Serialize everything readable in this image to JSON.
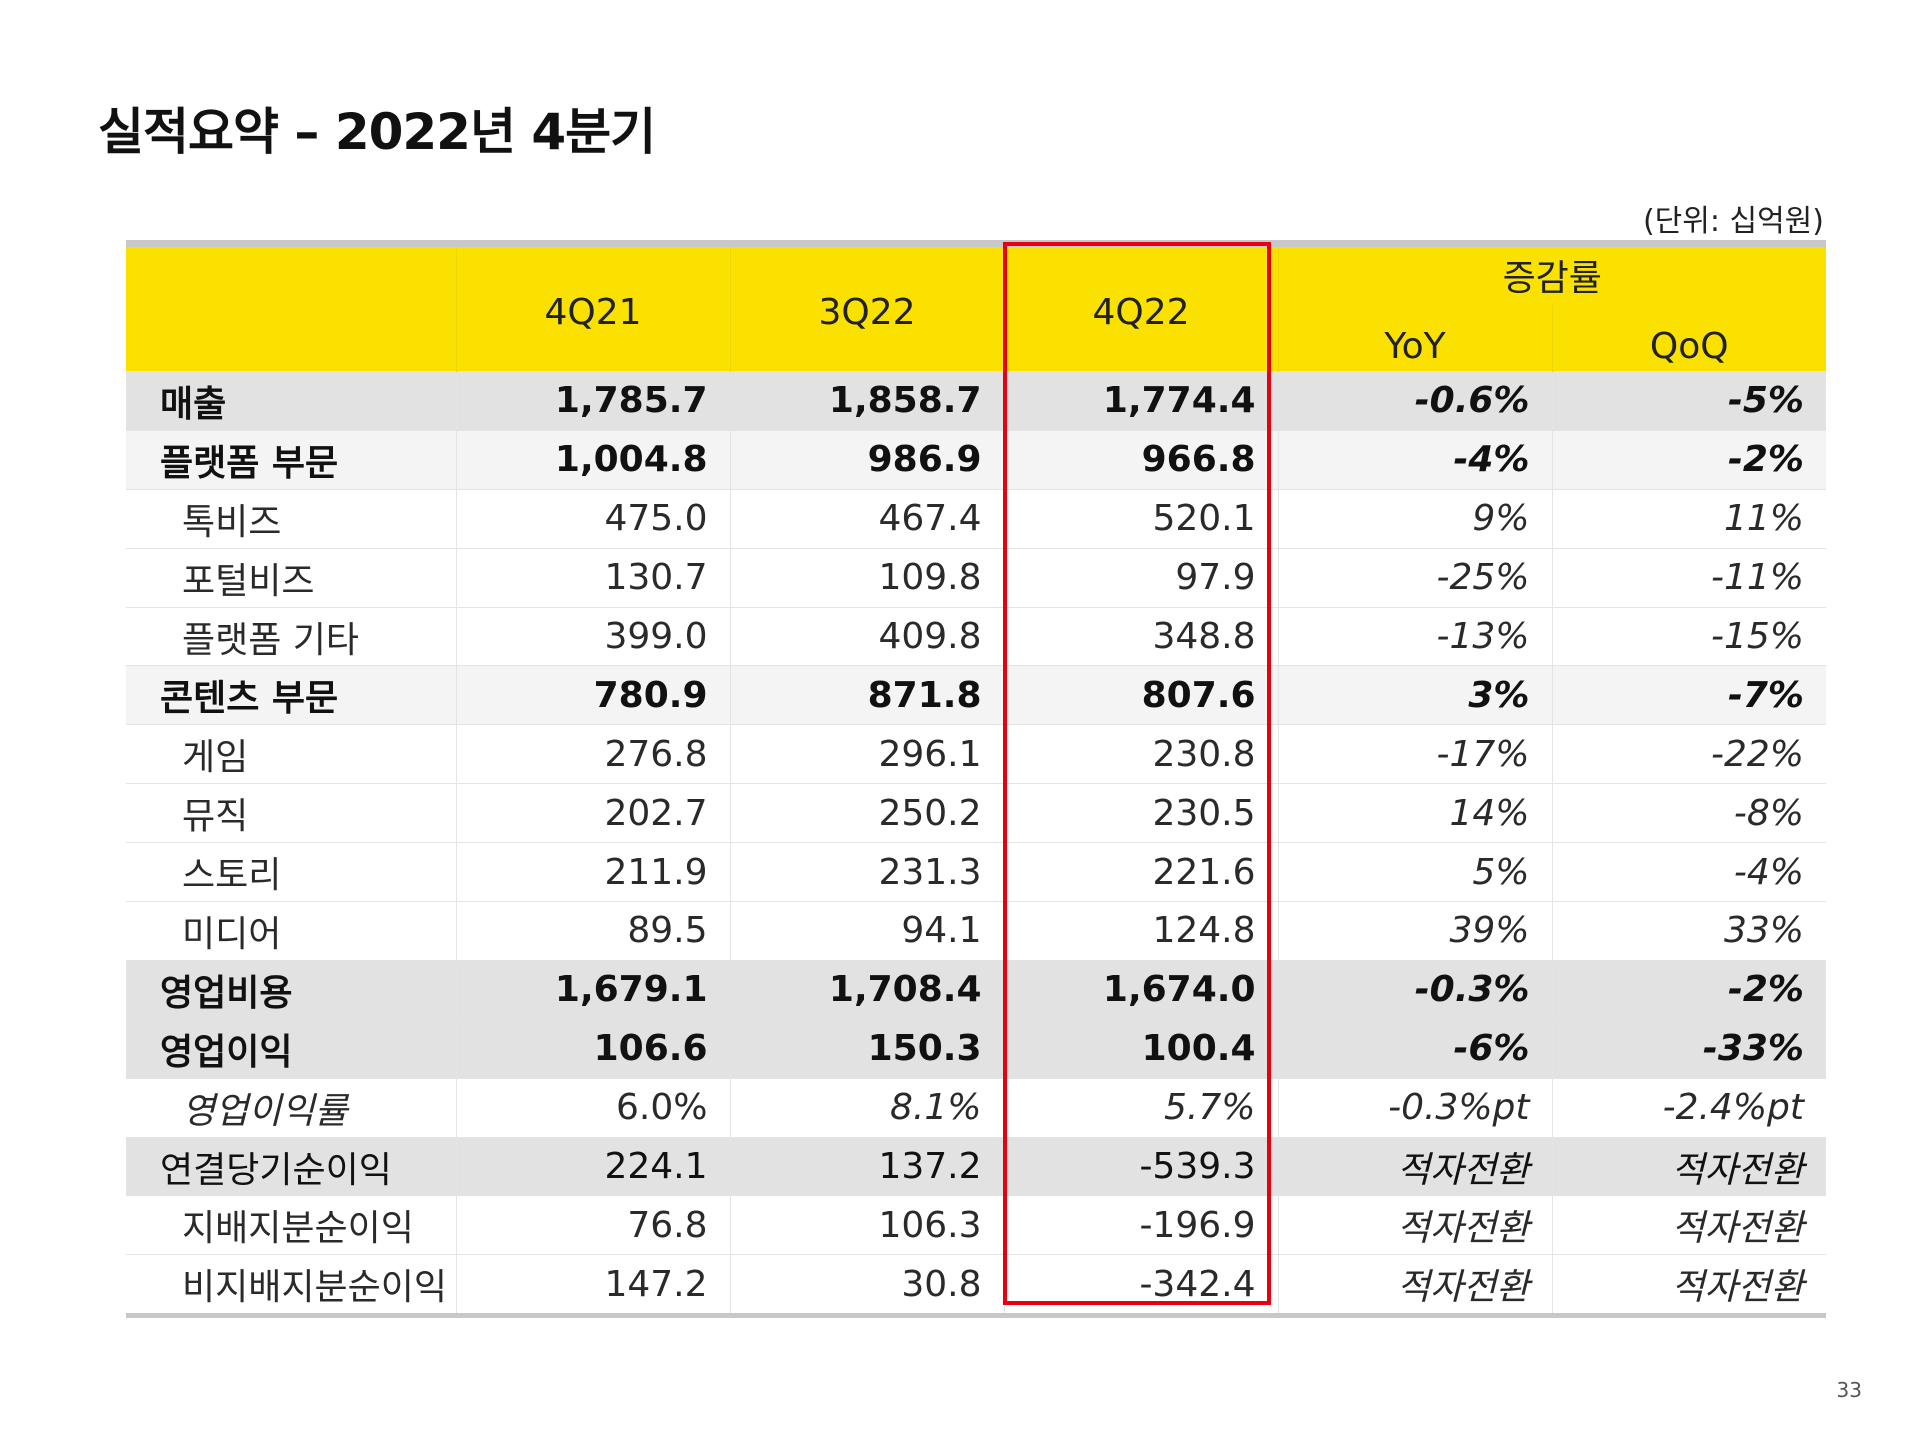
{
  "title": "실적요약 – 2022년 4분기",
  "unit_note": "(단위: 십억원)",
  "page_number": "33",
  "highlight_color": "#e60012",
  "header_color": "#fae100",
  "header": {
    "periods": [
      "4Q21",
      "3Q22",
      "4Q22"
    ],
    "change_group": "증감률",
    "change_cols": [
      "YoY",
      "QoQ"
    ]
  },
  "rows": [
    {
      "label": "매출",
      "values": [
        "1,785.7",
        "1,858.7",
        "1,774.4"
      ],
      "yoy": "-0.6%",
      "qoq": "-5%"
    },
    {
      "label": "플랫폼 부문",
      "values": [
        "1,004.8",
        "986.9",
        "966.8"
      ],
      "yoy": "-4%",
      "qoq": "-2%"
    },
    {
      "label": "톡비즈",
      "values": [
        "475.0",
        "467.4",
        "520.1"
      ],
      "yoy": "9%",
      "qoq": "11%"
    },
    {
      "label": "포털비즈",
      "values": [
        "130.7",
        "109.8",
        "97.9"
      ],
      "yoy": "-25%",
      "qoq": "-11%"
    },
    {
      "label": "플랫폼 기타",
      "values": [
        "399.0",
        "409.8",
        "348.8"
      ],
      "yoy": "-13%",
      "qoq": "-15%"
    },
    {
      "label": "콘텐츠 부문",
      "values": [
        "780.9",
        "871.8",
        "807.6"
      ],
      "yoy": "3%",
      "qoq": "-7%"
    },
    {
      "label": "게임",
      "values": [
        "276.8",
        "296.1",
        "230.8"
      ],
      "yoy": "-17%",
      "qoq": "-22%"
    },
    {
      "label": "뮤직",
      "values": [
        "202.7",
        "250.2",
        "230.5"
      ],
      "yoy": "14%",
      "qoq": "-8%"
    },
    {
      "label": "스토리",
      "values": [
        "211.9",
        "231.3",
        "221.6"
      ],
      "yoy": "5%",
      "qoq": "-4%"
    },
    {
      "label": "미디어",
      "values": [
        "89.5",
        "94.1",
        "124.8"
      ],
      "yoy": "39%",
      "qoq": "33%"
    },
    {
      "label": "영업비용",
      "values": [
        "1,679.1",
        "1,708.4",
        "1,674.0"
      ],
      "yoy": "-0.3%",
      "qoq": "-2%"
    },
    {
      "label": "영업이익",
      "values": [
        "106.6",
        "150.3",
        "100.4"
      ],
      "yoy": "-6%",
      "qoq": "-33%"
    },
    {
      "label": "영업이익률",
      "values": [
        "6.0%",
        "8.1%",
        "5.7%"
      ],
      "yoy": "-0.3%pt",
      "qoq": "-2.4%pt"
    },
    {
      "label": "연결당기순이익",
      "values": [
        "224.1",
        "137.2",
        "-539.3"
      ],
      "yoy": "적자전환",
      "qoq": "적자전환"
    },
    {
      "label": "지배지분순이익",
      "values": [
        "76.8",
        "106.3",
        "-196.9"
      ],
      "yoy": "적자전환",
      "qoq": "적자전환"
    },
    {
      "label": "비지배지분순이익",
      "values": [
        "147.2",
        "30.8",
        "-342.4"
      ],
      "yoy": "적자전환",
      "qoq": "적자전환"
    }
  ]
}
